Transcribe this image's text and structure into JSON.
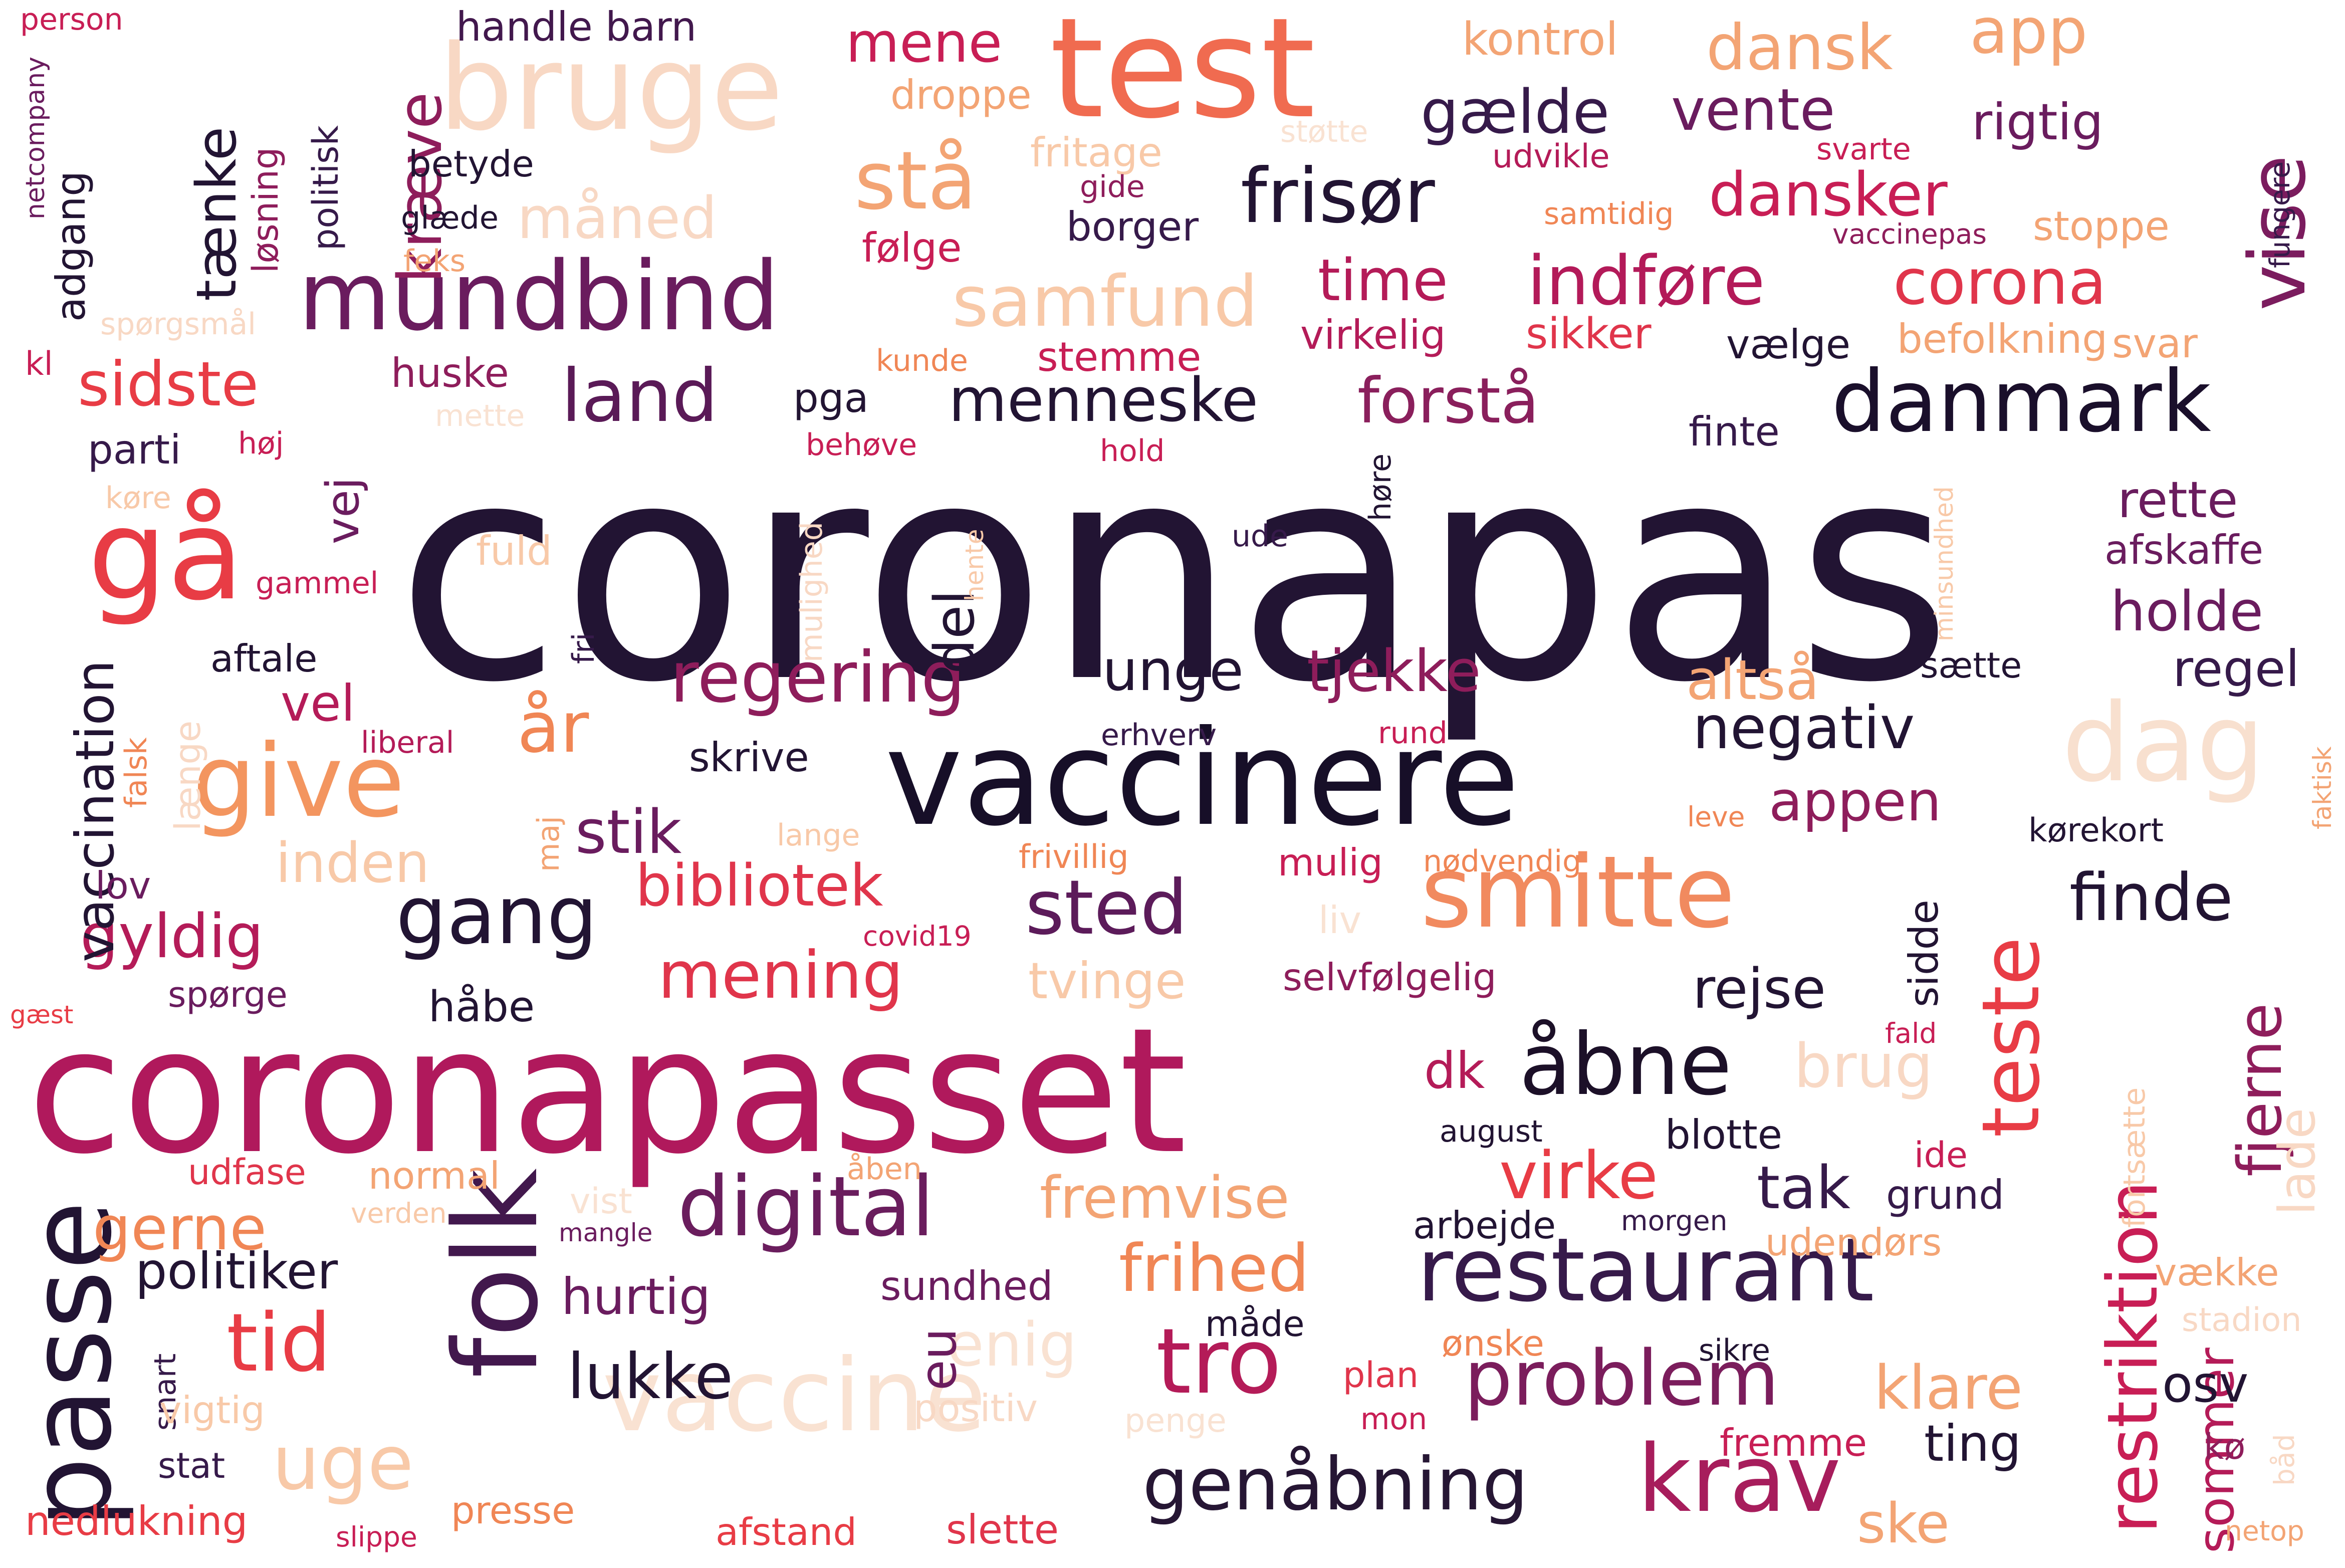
{
  "words": [
    {
      "text": "coronapas",
      "color": "#221433"
    },
    {
      "text": "coronapasset",
      "color": "#b0195c"
    },
    {
      "text": "vaccinere",
      "color": "#170f28"
    },
    {
      "text": "test",
      "color": "#f06b50"
    },
    {
      "text": "bruge",
      "color": "#f8d8c4"
    },
    {
      "text": "mundbind",
      "color": "#6a1c5e"
    },
    {
      "text": "gå",
      "color": "#e83c45"
    },
    {
      "text": "smitte",
      "color": "#f18a5f"
    },
    {
      "text": "vaccine",
      "color": "#f9e2d2"
    },
    {
      "text": "passe",
      "color": "#221433"
    },
    {
      "text": "folk",
      "color": "#42184d"
    },
    {
      "text": "restaurant",
      "color": "#361a4a"
    },
    {
      "text": "dag",
      "color": "#f8e0cf"
    },
    {
      "text": "give",
      "color": "#f3955f"
    },
    {
      "text": "danmark",
      "color": "#1a0f2b"
    },
    {
      "text": "digital",
      "color": "#6a1d5d"
    },
    {
      "text": "krav",
      "color": "#a71d5c"
    },
    {
      "text": "tro",
      "color": "#b41b58"
    },
    {
      "text": "teste",
      "color": "#e83c45"
    },
    {
      "text": "genåbning",
      "color": "#261634"
    },
    {
      "text": "problem",
      "color": "#7b1d5c"
    },
    {
      "text": "restriktion",
      "color": "#c81e55"
    },
    {
      "text": "åbne",
      "color": "#1c1028"
    },
    {
      "text": "frisør",
      "color": "#221433"
    },
    {
      "text": "vise",
      "color": "#7b1c5e"
    },
    {
      "text": "land",
      "color": "#5a1a57"
    },
    {
      "text": "gang",
      "color": "#221433"
    },
    {
      "text": "sted",
      "color": "#5c1b5a"
    },
    {
      "text": "regering",
      "color": "#8e1d5b"
    },
    {
      "text": "år",
      "color": "#f08655"
    },
    {
      "text": "tid",
      "color": "#e83c45"
    },
    {
      "text": "stå",
      "color": "#f3a474"
    },
    {
      "text": "forstå",
      "color": "#8a1f5c"
    },
    {
      "text": "indføre",
      "color": "#b31a59"
    },
    {
      "text": "corona",
      "color": "#e0354b"
    },
    {
      "text": "samfund",
      "color": "#f8c9a8"
    },
    {
      "text": "menneske",
      "color": "#221433"
    },
    {
      "text": "negativ",
      "color": "#221433"
    },
    {
      "text": "lukke",
      "color": "#221433"
    },
    {
      "text": "mening",
      "color": "#e0354b"
    },
    {
      "text": "bibliotek",
      "color": "#e0354b"
    },
    {
      "text": "gyldig",
      "color": "#b41b58"
    },
    {
      "text": "sidste",
      "color": "#e83c45"
    },
    {
      "text": "tænke",
      "color": "#221433"
    },
    {
      "text": "kræve",
      "color": "#8e1d5b"
    },
    {
      "text": "vaccination",
      "color": "#221433"
    },
    {
      "text": "stik",
      "color": "#6a1c5e"
    },
    {
      "text": "unge",
      "color": "#221433"
    },
    {
      "text": "tjekke",
      "color": "#8e1d5b"
    },
    {
      "text": "dansk",
      "color": "#f3a474"
    },
    {
      "text": "app",
      "color": "#f3a474"
    },
    {
      "text": "mene",
      "color": "#c81e55"
    },
    {
      "text": "dansker",
      "color": "#c81e55"
    },
    {
      "text": "gælde",
      "color": "#361a4a"
    },
    {
      "text": "vente",
      "color": "#6a1c5e"
    },
    {
      "text": "rigtig",
      "color": "#6a1c5e"
    },
    {
      "text": "time",
      "color": "#b41b58"
    },
    {
      "text": "måned",
      "color": "#f8d8c4"
    },
    {
      "text": "fremvise",
      "color": "#f3a474"
    },
    {
      "text": "frihed",
      "color": "#f08655"
    },
    {
      "text": "virke",
      "color": "#e83c45"
    },
    {
      "text": "tak",
      "color": "#361a4a"
    },
    {
      "text": "altså",
      "color": "#f3a474"
    },
    {
      "text": "appen",
      "color": "#8e1d5b"
    },
    {
      "text": "finde",
      "color": "#221433"
    },
    {
      "text": "rejse",
      "color": "#221433"
    },
    {
      "text": "klare",
      "color": "#f3a474"
    },
    {
      "text": "fjerne",
      "color": "#8e1d5b"
    },
    {
      "text": "holde",
      "color": "#6a1c5e"
    },
    {
      "text": "rette",
      "color": "#6a1c5e"
    },
    {
      "text": "regel",
      "color": "#361a4a"
    },
    {
      "text": "uge",
      "color": "#f8c9a8"
    },
    {
      "text": "enig",
      "color": "#f9e2d2"
    },
    {
      "text": "eu",
      "color": "#6a1c5e"
    },
    {
      "text": "dk",
      "color": "#b41b58"
    },
    {
      "text": "sommer",
      "color": "#b41b58"
    },
    {
      "text": "brug",
      "color": "#f8d8c4"
    },
    {
      "text": "tvinge",
      "color": "#f8c9a8"
    },
    {
      "text": "inden",
      "color": "#f8c9a8"
    },
    {
      "text": "vel",
      "color": "#b41b58"
    },
    {
      "text": "del",
      "color": "#221433"
    },
    {
      "text": "vej",
      "color": "#6a1c5e"
    },
    {
      "text": "gerne",
      "color": "#f08655"
    },
    {
      "text": "hurtig",
      "color": "#6a1c5e"
    },
    {
      "text": "politiker",
      "color": "#221433"
    },
    {
      "text": "sundhed",
      "color": "#6a1c5e"
    },
    {
      "text": "osv",
      "color": "#221433"
    },
    {
      "text": "ske",
      "color": "#f3a474"
    },
    {
      "text": "ting",
      "color": "#221433"
    },
    {
      "text": "lade",
      "color": "#f8d8c4"
    },
    {
      "text": "adgang",
      "color": "#221433"
    },
    {
      "text": "løsning",
      "color": "#8e1d5b"
    },
    {
      "text": "politisk",
      "color": "#361a4a"
    },
    {
      "text": "handle barn",
      "color": "#42184d"
    },
    {
      "text": "person",
      "color": "#c81e55"
    },
    {
      "text": "netcompany",
      "color": "#6a1c5e"
    },
    {
      "text": "kontrol",
      "color": "#f3a474"
    },
    {
      "text": "droppe",
      "color": "#f3a474"
    },
    {
      "text": "fritage",
      "color": "#f8c9a8"
    },
    {
      "text": "støtte",
      "color": "#f9e2d2"
    },
    {
      "text": "udvikle",
      "color": "#b41b58"
    },
    {
      "text": "svarte",
      "color": "#c81e55"
    },
    {
      "text": "gide",
      "color": "#8e1d5b"
    },
    {
      "text": "borger",
      "color": "#361a4a"
    },
    {
      "text": "samtidig",
      "color": "#f08655"
    },
    {
      "text": "vaccinepas",
      "color": "#8e1d5b"
    },
    {
      "text": "stoppe",
      "color": "#f3a474"
    },
    {
      "text": "fungere",
      "color": "#361a4a"
    },
    {
      "text": "betyde",
      "color": "#221433"
    },
    {
      "text": "glæde",
      "color": "#221433"
    },
    {
      "text": "følge",
      "color": "#c81e55"
    },
    {
      "text": "feks",
      "color": "#f3a474"
    },
    {
      "text": "spørgsmål",
      "color": "#f8d8c4"
    },
    {
      "text": "kl",
      "color": "#c81e55"
    },
    {
      "text": "huske",
      "color": "#8e1d5b"
    },
    {
      "text": "mette",
      "color": "#f9e2d2"
    },
    {
      "text": "parti",
      "color": "#361a4a"
    },
    {
      "text": "høj",
      "color": "#c81e55"
    },
    {
      "text": "køre",
      "color": "#f8c9a8"
    },
    {
      "text": "kunde",
      "color": "#f08655"
    },
    {
      "text": "stemme",
      "color": "#c81e55"
    },
    {
      "text": "virkelig",
      "color": "#b41b58"
    },
    {
      "text": "sikker",
      "color": "#e0354b"
    },
    {
      "text": "vælge",
      "color": "#221433"
    },
    {
      "text": "befolkning",
      "color": "#f3a474"
    },
    {
      "text": "svar",
      "color": "#f3a474"
    },
    {
      "text": "pga",
      "color": "#221433"
    },
    {
      "text": "behøve",
      "color": "#c81e55"
    },
    {
      "text": "hold",
      "color": "#c81e55"
    },
    {
      "text": "høre",
      "color": "#221433"
    },
    {
      "text": "finte",
      "color": "#361a4a"
    },
    {
      "text": "mulighed",
      "color": "#f8d8c4"
    },
    {
      "text": "fuld",
      "color": "#f8c9a8"
    },
    {
      "text": "ude",
      "color": "#361a4a"
    },
    {
      "text": "hente",
      "color": "#f8c9a8"
    },
    {
      "text": "minsundhed",
      "color": "#f8c9a8"
    },
    {
      "text": "afskaffe",
      "color": "#6a1c5e"
    },
    {
      "text": "gammel",
      "color": "#c81e55"
    },
    {
      "text": "fri",
      "color": "#361a4a"
    },
    {
      "text": "aftale",
      "color": "#221433"
    },
    {
      "text": "sætte",
      "color": "#221433"
    },
    {
      "text": "liberal",
      "color": "#b41b58"
    },
    {
      "text": "falsk",
      "color": "#f08655"
    },
    {
      "text": "længe",
      "color": "#f8d8c4"
    },
    {
      "text": "erhverv",
      "color": "#361a4a"
    },
    {
      "text": "rund",
      "color": "#c81e55"
    },
    {
      "text": "faktisk",
      "color": "#f3a474"
    },
    {
      "text": "skrive",
      "color": "#221433"
    },
    {
      "text": "maj",
      "color": "#f3a474"
    },
    {
      "text": "lange",
      "color": "#f8c9a8"
    },
    {
      "text": "leve",
      "color": "#f08655"
    },
    {
      "text": "kørekort",
      "color": "#221433"
    },
    {
      "text": "frivillig",
      "color": "#f08655"
    },
    {
      "text": "mulig",
      "color": "#c81e55"
    },
    {
      "text": "nødvendig",
      "color": "#f08655"
    },
    {
      "text": "lov",
      "color": "#6a1c5e"
    },
    {
      "text": "covid19",
      "color": "#c81e55"
    },
    {
      "text": "liv",
      "color": "#f9e2d2"
    },
    {
      "text": "spørge",
      "color": "#6a1c5e"
    },
    {
      "text": "selvfølgelig",
      "color": "#8e1d5b"
    },
    {
      "text": "sidde",
      "color": "#221433"
    },
    {
      "text": "gæst",
      "color": "#e83c45"
    },
    {
      "text": "håbe",
      "color": "#221433"
    },
    {
      "text": "fald",
      "color": "#c81e55"
    },
    {
      "text": "fortsætte",
      "color": "#f8c9a8"
    },
    {
      "text": "august",
      "color": "#221433"
    },
    {
      "text": "blotte",
      "color": "#221433"
    },
    {
      "text": "udfase",
      "color": "#e0354b"
    },
    {
      "text": "normal",
      "color": "#f3a474"
    },
    {
      "text": "åben",
      "color": "#f3a474"
    },
    {
      "text": "ide",
      "color": "#c81e55"
    },
    {
      "text": "grund",
      "color": "#361a4a"
    },
    {
      "text": "verden",
      "color": "#f8c9a8"
    },
    {
      "text": "vist",
      "color": "#f9e2d2"
    },
    {
      "text": "mangle",
      "color": "#6a1c5e"
    },
    {
      "text": "arbejde",
      "color": "#221433"
    },
    {
      "text": "morgen",
      "color": "#361a4a"
    },
    {
      "text": "udendørs",
      "color": "#f3a474"
    },
    {
      "text": "vække",
      "color": "#f3a474"
    },
    {
      "text": "stadion",
      "color": "#f8d8c4"
    },
    {
      "text": "måde",
      "color": "#221433"
    },
    {
      "text": "ønske",
      "color": "#f08655"
    },
    {
      "text": "sikre",
      "color": "#221433"
    },
    {
      "text": "snart",
      "color": "#361a4a"
    },
    {
      "text": "vigtig",
      "color": "#f8c9a8"
    },
    {
      "text": "positiv",
      "color": "#f8d8c4"
    },
    {
      "text": "penge",
      "color": "#f9e2d2"
    },
    {
      "text": "plan",
      "color": "#e0354b"
    },
    {
      "text": "mon",
      "color": "#c81e55"
    },
    {
      "text": "fremme",
      "color": "#c81e55"
    },
    {
      "text": "kø",
      "color": "#8e1d5b"
    },
    {
      "text": "båd",
      "color": "#f8d8c4"
    },
    {
      "text": "stat",
      "color": "#361a4a"
    },
    {
      "text": "nedlukning",
      "color": "#e83c45"
    },
    {
      "text": "slippe",
      "color": "#c81e55"
    },
    {
      "text": "presse",
      "color": "#f08655"
    },
    {
      "text": "afstand",
      "color": "#e83c45"
    },
    {
      "text": "slette",
      "color": "#e0354b"
    },
    {
      "text": "netop",
      "color": "#f3a474"
    }
  ]
}
